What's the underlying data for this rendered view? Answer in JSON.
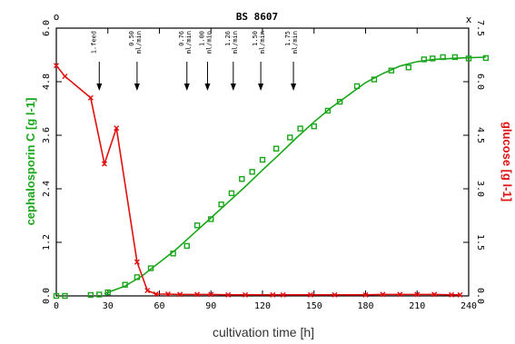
{
  "chart_data": {
    "type": "line",
    "title": "BS 8607",
    "top_left_marker": "o",
    "top_right_marker": "x",
    "xlabel": "cultivation time [h]",
    "ylabel_left": "cephalosporin C [g l-1]",
    "ylabel_right": "glucose [g l-1]",
    "xlim": [
      0,
      240
    ],
    "ylim_left": [
      0,
      6.0
    ],
    "ylim_right": [
      0,
      7.5
    ],
    "x_ticks": [
      0,
      30,
      60,
      90,
      120,
      150,
      180,
      210,
      240
    ],
    "y_left_ticks": [
      "0.0",
      "1.2",
      "2.4",
      "3.6",
      "4.8",
      "6.0"
    ],
    "y_right_ticks": [
      "0.0",
      "1.5",
      "3.0",
      "4.5",
      "6.0",
      "7.5"
    ],
    "x_tick_labels": [
      "0",
      "30",
      "60",
      "90",
      "120",
      "150",
      "180",
      "210",
      "240"
    ],
    "colors": {
      "cephalosporin": "#1aa61a",
      "glucose": "#e01010",
      "axes": "#000000"
    },
    "grid": false,
    "annotations": [
      {
        "x": 25,
        "lines": [
          "1.feed"
        ]
      },
      {
        "x": 47,
        "lines": [
          "0.50",
          "ml/min"
        ]
      },
      {
        "x": 76,
        "lines": [
          "0.76",
          "ml/min"
        ]
      },
      {
        "x": 88,
        "lines": [
          "1.00",
          "ml/min"
        ]
      },
      {
        "x": 103,
        "lines": [
          "1.26",
          "ml/min"
        ]
      },
      {
        "x": 119,
        "lines": [
          "1.50",
          "ml/min"
        ]
      },
      {
        "x": 138,
        "lines": [
          "1.75",
          "ml/min"
        ]
      }
    ],
    "series": [
      {
        "name": "cephalosporin C",
        "axis": "left",
        "marker": "square",
        "color": "#1aa61a",
        "points": [
          [
            0,
            0.0
          ],
          [
            5,
            0.0
          ],
          [
            20,
            0.02
          ],
          [
            25,
            0.03
          ],
          [
            30,
            0.08
          ],
          [
            40,
            0.25
          ],
          [
            47,
            0.42
          ],
          [
            55,
            0.62
          ],
          [
            68,
            0.95
          ],
          [
            76,
            1.12
          ],
          [
            82,
            1.58
          ],
          [
            90,
            1.72
          ],
          [
            96,
            2.05
          ],
          [
            102,
            2.3
          ],
          [
            108,
            2.62
          ],
          [
            114,
            2.78
          ],
          [
            120,
            3.05
          ],
          [
            128,
            3.3
          ],
          [
            136,
            3.55
          ],
          [
            142,
            3.75
          ],
          [
            150,
            3.8
          ],
          [
            158,
            4.15
          ],
          [
            165,
            4.35
          ],
          [
            175,
            4.7
          ],
          [
            185,
            4.85
          ],
          [
            195,
            5.05
          ],
          [
            205,
            5.12
          ],
          [
            214,
            5.3
          ],
          [
            219,
            5.32
          ],
          [
            225,
            5.35
          ],
          [
            232,
            5.35
          ],
          [
            240,
            5.32
          ],
          [
            250,
            5.33
          ]
        ],
        "fit_curve": [
          [
            28,
            0.05
          ],
          [
            40,
            0.22
          ],
          [
            50,
            0.45
          ],
          [
            60,
            0.75
          ],
          [
            70,
            1.05
          ],
          [
            80,
            1.4
          ],
          [
            90,
            1.75
          ],
          [
            100,
            2.1
          ],
          [
            110,
            2.45
          ],
          [
            120,
            2.82
          ],
          [
            130,
            3.18
          ],
          [
            140,
            3.55
          ],
          [
            150,
            3.9
          ],
          [
            160,
            4.22
          ],
          [
            170,
            4.5
          ],
          [
            180,
            4.78
          ],
          [
            190,
            4.98
          ],
          [
            200,
            5.15
          ],
          [
            210,
            5.25
          ],
          [
            220,
            5.3
          ],
          [
            235,
            5.33
          ],
          [
            250,
            5.35
          ]
        ]
      },
      {
        "name": "glucose",
        "axis": "right",
        "marker": "x",
        "color": "#e01010",
        "points": [
          [
            0,
            6.45
          ],
          [
            5,
            6.15
          ],
          [
            20,
            5.55
          ],
          [
            28,
            3.7
          ],
          [
            35,
            4.7
          ],
          [
            47,
            0.95
          ],
          [
            53,
            0.15
          ],
          [
            58,
            0.05
          ],
          [
            65,
            0.05
          ],
          [
            72,
            0.04
          ],
          [
            82,
            0.04
          ],
          [
            90,
            0.04
          ],
          [
            100,
            0.03
          ],
          [
            110,
            0.03
          ],
          [
            126,
            0.03
          ],
          [
            132,
            0.03
          ],
          [
            148,
            0.03
          ],
          [
            162,
            0.03
          ],
          [
            180,
            0.03
          ],
          [
            190,
            0.04
          ],
          [
            200,
            0.04
          ],
          [
            210,
            0.04
          ],
          [
            220,
            0.04
          ],
          [
            230,
            0.03
          ],
          [
            235,
            0.03
          ]
        ]
      }
    ]
  }
}
